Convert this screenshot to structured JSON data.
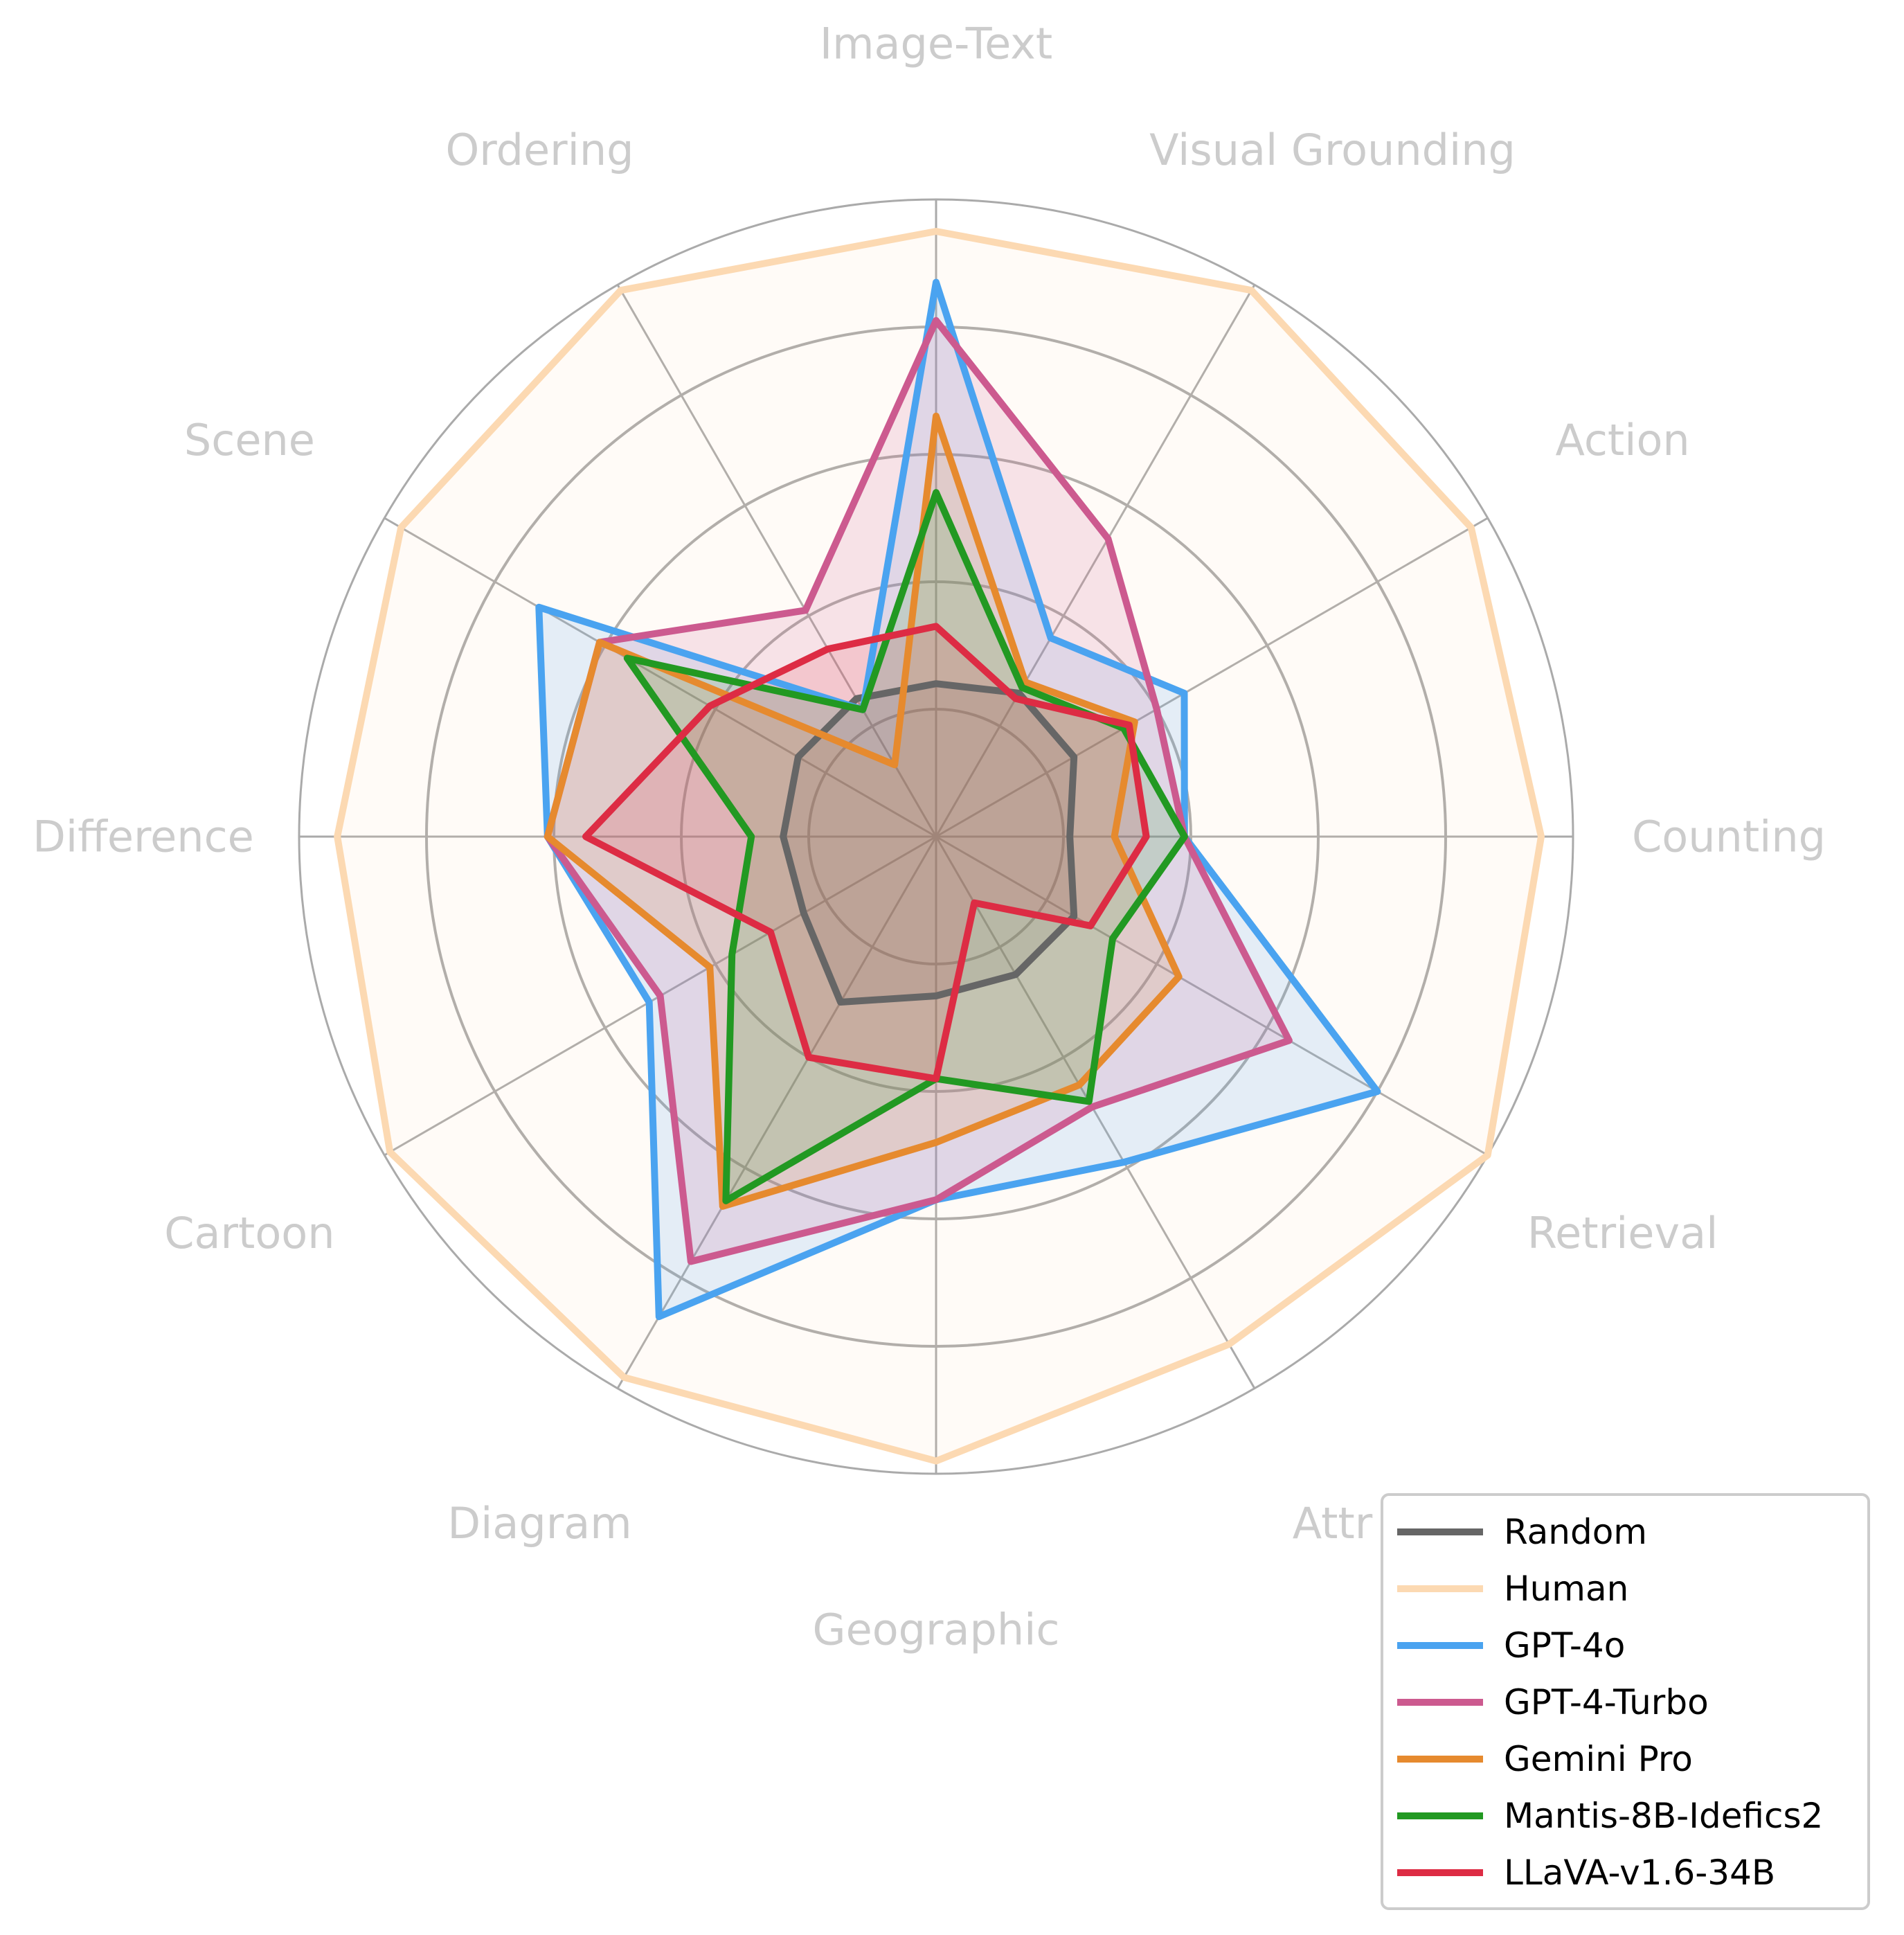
{
  "chart_data": {
    "type": "radar",
    "title": "",
    "axes": [
      "Image-Text",
      "Visual Grounding",
      "Action",
      "Counting",
      "Retrieval",
      "Attr",
      "Geographic",
      "Diagram",
      "Cartoon",
      "Difference",
      "Scene",
      "Ordering"
    ],
    "rlim": [
      0,
      100
    ],
    "grid_rings": [
      20,
      40,
      60,
      80,
      100
    ],
    "grid": true,
    "legend_position": "bottom-right",
    "series": [
      {
        "name": "Random",
        "color": "#666666",
        "values": [
          24,
          26,
          25,
          21,
          25,
          25,
          25,
          30,
          24,
          24,
          25,
          25
        ]
      },
      {
        "name": "Human",
        "color": "#fcd9b2",
        "values": [
          95,
          99,
          97,
          95,
          100,
          92,
          98,
          98,
          99,
          94,
          97,
          99
        ]
      },
      {
        "name": "GPT-4o",
        "color": "#4aa3f0",
        "values": [
          87,
          36,
          45,
          39,
          80,
          59,
          57,
          87,
          52,
          61,
          72,
          23
        ]
      },
      {
        "name": "GPT-4-Turbo",
        "color": "#cc5a8f",
        "values": [
          81,
          54,
          40,
          39,
          64,
          49,
          57,
          77,
          50,
          61,
          61,
          41
        ]
      },
      {
        "name": "Gemini Pro",
        "color": "#e68a2e",
        "values": [
          66,
          28,
          36,
          28,
          44,
          45,
          48,
          67,
          41,
          61,
          61,
          13
        ]
      },
      {
        "name": "Mantis-8B-Idefics2",
        "color": "#229922",
        "values": [
          54,
          27,
          34,
          39,
          32,
          48,
          38,
          66,
          37,
          29,
          56,
          23
        ]
      },
      {
        "name": "LLaVA-v1.6-34B",
        "color": "#dd2c44",
        "values": [
          33,
          25,
          35,
          33,
          28,
          12,
          38,
          40,
          30,
          55,
          41,
          34
        ]
      }
    ]
  },
  "legend": {
    "items": [
      "Random",
      "Human",
      "GPT-4o",
      "GPT-4-Turbo",
      "Gemini Pro",
      "Mantis-8B-Idefics2",
      "LLaVA-v1.6-34B"
    ]
  }
}
